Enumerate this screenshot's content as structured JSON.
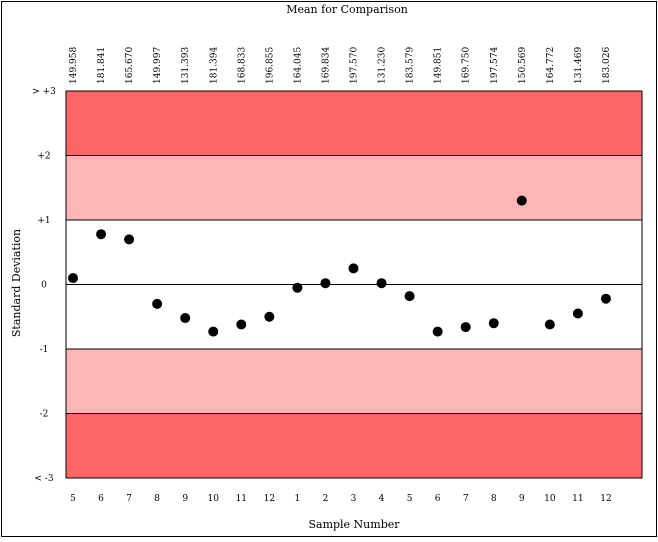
{
  "chart_data": {
    "type": "scatter",
    "title": "Mean for Comparison",
    "xlabel": "Sample Number",
    "ylabel": "Standard Deviation",
    "y_tick_labels": [
      "> +3",
      "+2",
      "+1",
      "0",
      "-1",
      "-2",
      "< -3"
    ],
    "y_tick_values": [
      3,
      2,
      1,
      0,
      -1,
      -2,
      -3
    ],
    "ylim": [
      -3,
      3
    ],
    "x_tick_labels": [
      "5",
      "6",
      "7",
      "8",
      "9",
      "10",
      "11",
      "12",
      "1",
      "2",
      "3",
      "4",
      "5",
      "6",
      "7",
      "8",
      "9",
      "10",
      "11",
      "12"
    ],
    "top_labels": [
      "149.958",
      "181.841",
      "165.670",
      "149.997",
      "131.393",
      "181.394",
      "168.833",
      "196.855",
      "164.045",
      "169.834",
      "197.570",
      "131.230",
      "183.579",
      "149.851",
      "169.750",
      "197.574",
      "150.569",
      "164.772",
      "131.469",
      "183.026"
    ],
    "values": [
      0.1,
      0.78,
      0.7,
      -0.3,
      -0.52,
      -0.73,
      -0.62,
      -0.5,
      -0.05,
      0.02,
      0.25,
      0.02,
      -0.18,
      -0.73,
      -0.66,
      -0.6,
      1.3,
      -0.62,
      -0.45,
      -0.22
    ],
    "bands": [
      {
        "from": 2,
        "to": 3,
        "color": "#ff6666"
      },
      {
        "from": 1,
        "to": 2,
        "color": "#ffb6b6"
      },
      {
        "from": -1,
        "to": 1,
        "color": "#ffffff"
      },
      {
        "from": -2,
        "to": -1,
        "color": "#ffb6b6"
      },
      {
        "from": -3,
        "to": -2,
        "color": "#ff6666"
      }
    ],
    "marker_color": "#000000",
    "grid": false
  }
}
